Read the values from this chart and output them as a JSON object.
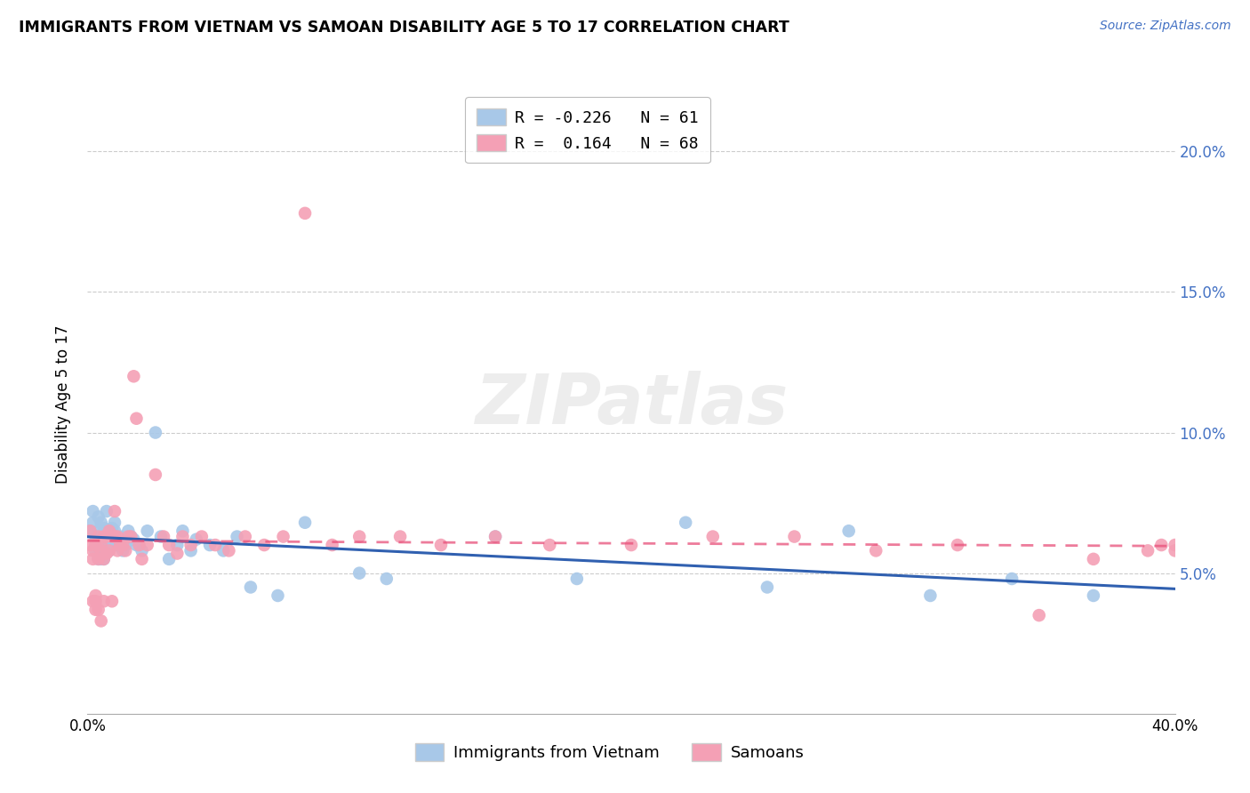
{
  "title": "IMMIGRANTS FROM VIETNAM VS SAMOAN DISABILITY AGE 5 TO 17 CORRELATION CHART",
  "source": "Source: ZipAtlas.com",
  "ylabel": "Disability Age 5 to 17",
  "xlim": [
    0.0,
    0.4
  ],
  "ylim": [
    0.0,
    0.22
  ],
  "yticks": [
    0.05,
    0.1,
    0.15,
    0.2
  ],
  "ytick_labels": [
    "5.0%",
    "10.0%",
    "15.0%",
    "20.0%"
  ],
  "xticks": [
    0.0,
    0.1,
    0.2,
    0.3,
    0.4
  ],
  "series1_color": "#a8c8e8",
  "series2_color": "#f4a0b5",
  "trendline1_color": "#3060b0",
  "trendline2_color": "#e8507a",
  "r1": -0.226,
  "n1": 61,
  "r2": 0.164,
  "n2": 68,
  "legend_label1": "Immigrants from Vietnam",
  "legend_label2": "Samoans",
  "watermark": "ZIPatlas",
  "series1_x": [
    0.001,
    0.002,
    0.002,
    0.003,
    0.003,
    0.003,
    0.004,
    0.004,
    0.004,
    0.004,
    0.005,
    0.005,
    0.005,
    0.005,
    0.006,
    0.006,
    0.006,
    0.006,
    0.007,
    0.007,
    0.007,
    0.008,
    0.008,
    0.008,
    0.009,
    0.009,
    0.01,
    0.01,
    0.011,
    0.012,
    0.013,
    0.014,
    0.015,
    0.016,
    0.017,
    0.018,
    0.02,
    0.022,
    0.025,
    0.027,
    0.03,
    0.033,
    0.035,
    0.038,
    0.04,
    0.045,
    0.05,
    0.055,
    0.06,
    0.07,
    0.08,
    0.1,
    0.11,
    0.15,
    0.18,
    0.22,
    0.25,
    0.28,
    0.31,
    0.34,
    0.37
  ],
  "series1_y": [
    0.065,
    0.068,
    0.072,
    0.06,
    0.058,
    0.063,
    0.055,
    0.06,
    0.065,
    0.07,
    0.058,
    0.063,
    0.068,
    0.055,
    0.06,
    0.063,
    0.066,
    0.055,
    0.058,
    0.062,
    0.072,
    0.063,
    0.058,
    0.06,
    0.066,
    0.062,
    0.068,
    0.065,
    0.06,
    0.063,
    0.058,
    0.06,
    0.065,
    0.063,
    0.062,
    0.06,
    0.058,
    0.065,
    0.1,
    0.063,
    0.055,
    0.06,
    0.065,
    0.058,
    0.062,
    0.06,
    0.058,
    0.063,
    0.045,
    0.042,
    0.068,
    0.05,
    0.048,
    0.063,
    0.048,
    0.068,
    0.045,
    0.065,
    0.042,
    0.048,
    0.042
  ],
  "series2_x": [
    0.001,
    0.001,
    0.002,
    0.002,
    0.002,
    0.003,
    0.003,
    0.003,
    0.003,
    0.004,
    0.004,
    0.004,
    0.005,
    0.005,
    0.005,
    0.006,
    0.006,
    0.006,
    0.007,
    0.007,
    0.008,
    0.008,
    0.009,
    0.009,
    0.01,
    0.01,
    0.011,
    0.011,
    0.012,
    0.013,
    0.014,
    0.015,
    0.016,
    0.017,
    0.018,
    0.019,
    0.02,
    0.022,
    0.025,
    0.028,
    0.03,
    0.033,
    0.035,
    0.038,
    0.042,
    0.047,
    0.052,
    0.058,
    0.065,
    0.072,
    0.08,
    0.09,
    0.1,
    0.115,
    0.13,
    0.15,
    0.17,
    0.2,
    0.23,
    0.26,
    0.29,
    0.32,
    0.35,
    0.37,
    0.39,
    0.395,
    0.4,
    0.4
  ],
  "series2_y": [
    0.065,
    0.06,
    0.055,
    0.058,
    0.04,
    0.04,
    0.037,
    0.042,
    0.06,
    0.063,
    0.055,
    0.037,
    0.06,
    0.058,
    0.033,
    0.063,
    0.055,
    0.04,
    0.057,
    0.063,
    0.065,
    0.058,
    0.063,
    0.04,
    0.063,
    0.072,
    0.063,
    0.058,
    0.06,
    0.06,
    0.058,
    0.063,
    0.063,
    0.12,
    0.105,
    0.06,
    0.055,
    0.06,
    0.085,
    0.063,
    0.06,
    0.057,
    0.063,
    0.06,
    0.063,
    0.06,
    0.058,
    0.063,
    0.06,
    0.063,
    0.178,
    0.06,
    0.063,
    0.063,
    0.06,
    0.063,
    0.06,
    0.06,
    0.063,
    0.063,
    0.058,
    0.06,
    0.035,
    0.055,
    0.058,
    0.06,
    0.06,
    0.058
  ]
}
